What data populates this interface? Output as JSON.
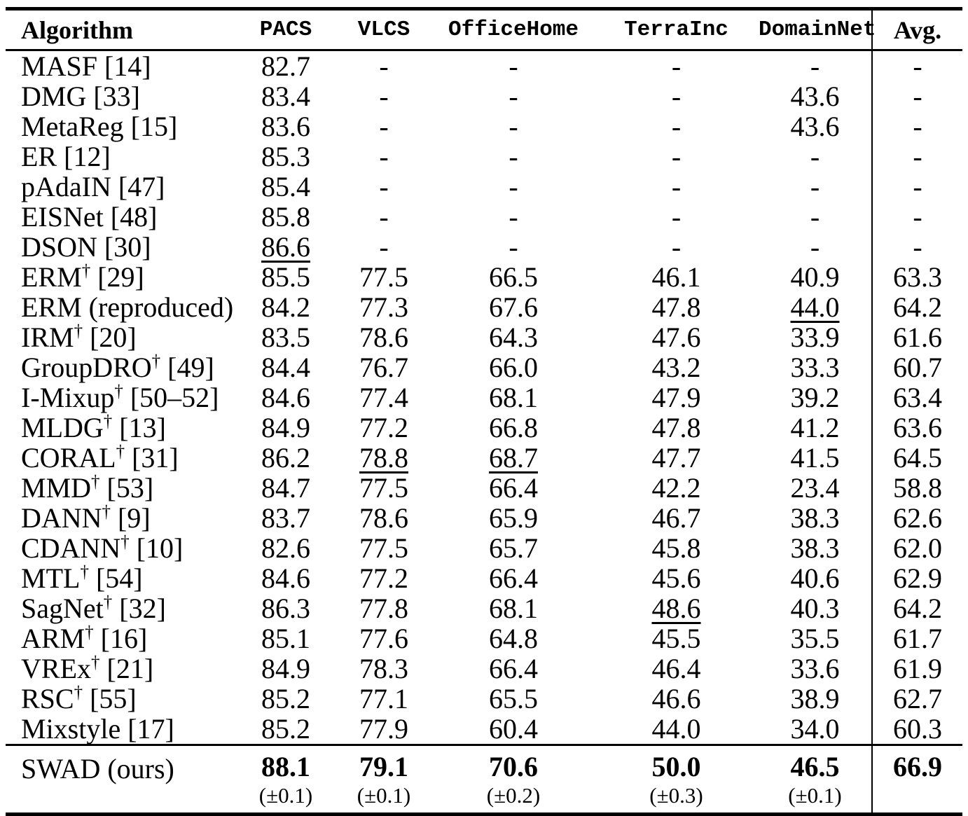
{
  "page": {
    "background": "#ffffff",
    "text_color": "#000000"
  },
  "table": {
    "header": {
      "algorithm_label": "Algorithm",
      "dataset_columns": [
        "PACS",
        "VLCS",
        "OfficeHome",
        "TerraInc",
        "DomainNet"
      ],
      "avg_label": "Avg."
    },
    "symbols": {
      "dagger": "†",
      "missing": "-"
    },
    "rows": [
      {
        "name": "MASF",
        "dagger": false,
        "cite": "[14]",
        "values": [
          "82.7",
          "-",
          "-",
          "-",
          "-"
        ],
        "avg": "-",
        "underline": []
      },
      {
        "name": "DMG",
        "dagger": false,
        "cite": "[33]",
        "values": [
          "83.4",
          "-",
          "-",
          "-",
          "43.6"
        ],
        "avg": "-",
        "underline": []
      },
      {
        "name": "MetaReg",
        "dagger": false,
        "cite": "[15]",
        "values": [
          "83.6",
          "-",
          "-",
          "-",
          "43.6"
        ],
        "avg": "-",
        "underline": []
      },
      {
        "name": "ER",
        "dagger": false,
        "cite": "[12]",
        "values": [
          "85.3",
          "-",
          "-",
          "-",
          "-"
        ],
        "avg": "-",
        "underline": []
      },
      {
        "name": "pAdaIN",
        "dagger": false,
        "cite": "[47]",
        "values": [
          "85.4",
          "-",
          "-",
          "-",
          "-"
        ],
        "avg": "-",
        "underline": []
      },
      {
        "name": "EISNet",
        "dagger": false,
        "cite": "[48]",
        "values": [
          "85.8",
          "-",
          "-",
          "-",
          "-"
        ],
        "avg": "-",
        "underline": []
      },
      {
        "name": "DSON",
        "dagger": false,
        "cite": "[30]",
        "values": [
          "86.6",
          "-",
          "-",
          "-",
          "-"
        ],
        "avg": "-",
        "underline": [
          0
        ]
      },
      {
        "name": "ERM",
        "dagger": true,
        "cite": "[29]",
        "values": [
          "85.5",
          "77.5",
          "66.5",
          "46.1",
          "40.9"
        ],
        "avg": "63.3",
        "underline": []
      },
      {
        "name": "ERM (reproduced)",
        "dagger": false,
        "cite": "",
        "values": [
          "84.2",
          "77.3",
          "67.6",
          "47.8",
          "44.0"
        ],
        "avg": "64.2",
        "underline": [
          4
        ]
      },
      {
        "name": "IRM",
        "dagger": true,
        "cite": "[20]",
        "values": [
          "83.5",
          "78.6",
          "64.3",
          "47.6",
          "33.9"
        ],
        "avg": "61.6",
        "underline": []
      },
      {
        "name": "GroupDRO",
        "dagger": true,
        "cite": "[49]",
        "values": [
          "84.4",
          "76.7",
          "66.0",
          "43.2",
          "33.3"
        ],
        "avg": "60.7",
        "underline": []
      },
      {
        "name": "I-Mixup",
        "dagger": true,
        "cite": "[50–52]",
        "values": [
          "84.6",
          "77.4",
          "68.1",
          "47.9",
          "39.2"
        ],
        "avg": "63.4",
        "underline": []
      },
      {
        "name": "MLDG",
        "dagger": true,
        "cite": "[13]",
        "values": [
          "84.9",
          "77.2",
          "66.8",
          "47.8",
          "41.2"
        ],
        "avg": "63.6",
        "underline": []
      },
      {
        "name": "CORAL",
        "dagger": true,
        "cite": "[31]",
        "values": [
          "86.2",
          "78.8",
          "68.7",
          "47.7",
          "41.5"
        ],
        "avg": "64.5",
        "underline": [
          1,
          2
        ]
      },
      {
        "name": "MMD",
        "dagger": true,
        "cite": "[53]",
        "values": [
          "84.7",
          "77.5",
          "66.4",
          "42.2",
          "23.4"
        ],
        "avg": "58.8",
        "underline": []
      },
      {
        "name": "DANN",
        "dagger": true,
        "cite": "[9]",
        "values": [
          "83.7",
          "78.6",
          "65.9",
          "46.7",
          "38.3"
        ],
        "avg": "62.6",
        "underline": []
      },
      {
        "name": "CDANN",
        "dagger": true,
        "cite": "[10]",
        "values": [
          "82.6",
          "77.5",
          "65.7",
          "45.8",
          "38.3"
        ],
        "avg": "62.0",
        "underline": []
      },
      {
        "name": "MTL",
        "dagger": true,
        "cite": "[54]",
        "values": [
          "84.6",
          "77.2",
          "66.4",
          "45.6",
          "40.6"
        ],
        "avg": "62.9",
        "underline": []
      },
      {
        "name": "SagNet",
        "dagger": true,
        "cite": "[32]",
        "values": [
          "86.3",
          "77.8",
          "68.1",
          "48.6",
          "40.3"
        ],
        "avg": "64.2",
        "underline": [
          3
        ]
      },
      {
        "name": "ARM",
        "dagger": true,
        "cite": "[16]",
        "values": [
          "85.1",
          "77.6",
          "64.8",
          "45.5",
          "35.5"
        ],
        "avg": "61.7",
        "underline": []
      },
      {
        "name": "VREx",
        "dagger": true,
        "cite": "[21]",
        "values": [
          "84.9",
          "78.3",
          "66.4",
          "46.4",
          "33.6"
        ],
        "avg": "61.9",
        "underline": []
      },
      {
        "name": "RSC",
        "dagger": true,
        "cite": "[55]",
        "values": [
          "85.2",
          "77.1",
          "65.5",
          "46.6",
          "38.9"
        ],
        "avg": "62.7",
        "underline": []
      },
      {
        "name": "Mixstyle",
        "dagger": false,
        "cite": "[17]",
        "values": [
          "85.2",
          "77.9",
          "60.4",
          "44.0",
          "34.0"
        ],
        "avg": "60.3",
        "underline": []
      }
    ],
    "footer": {
      "algorithm": "SWAD (ours)",
      "values": [
        "88.1",
        "79.1",
        "70.6",
        "50.0",
        "46.5"
      ],
      "stddevs": [
        "(±0.1)",
        "(±0.1)",
        "(±0.2)",
        "(±0.3)",
        "(±0.1)"
      ],
      "avg": "66.9"
    }
  }
}
